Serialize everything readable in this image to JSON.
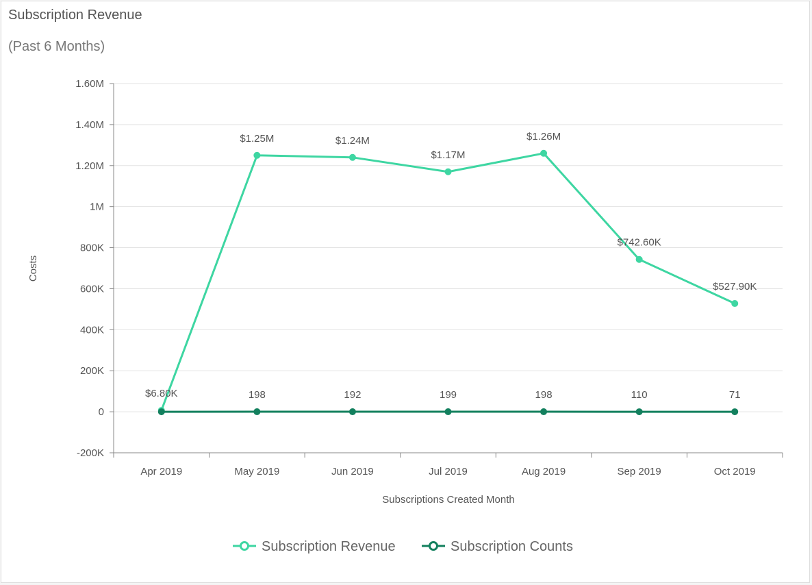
{
  "panel": {
    "title": "Subscription Revenue",
    "subtitle": "(Past 6 Months)"
  },
  "chart_data": {
    "type": "line",
    "title": "Subscription Revenue",
    "subtitle": "(Past 6 Months)",
    "xlabel": "Subscriptions Created Month",
    "ylabel": "Costs",
    "categories": [
      "Apr 2019",
      "May 2019",
      "Jun 2019",
      "Jul 2019",
      "Aug 2019",
      "Sep 2019",
      "Oct 2019"
    ],
    "ylim": [
      -200000,
      1600000
    ],
    "yticks": [
      {
        "value": -200000,
        "label": "-200K"
      },
      {
        "value": 0,
        "label": "0"
      },
      {
        "value": 200000,
        "label": "200K"
      },
      {
        "value": 400000,
        "label": "400K"
      },
      {
        "value": 600000,
        "label": "600K"
      },
      {
        "value": 800000,
        "label": "800K"
      },
      {
        "value": 1000000,
        "label": "1M"
      },
      {
        "value": 1200000,
        "label": "1.20M"
      },
      {
        "value": 1400000,
        "label": "1.40M"
      },
      {
        "value": 1600000,
        "label": "1.60M"
      }
    ],
    "grid": "horizontal",
    "legend_position": "bottom",
    "series": [
      {
        "name": "Subscription Revenue",
        "color": "#3ed6a2",
        "values": [
          6800,
          1250000,
          1240000,
          1170000,
          1260000,
          742600,
          527900
        ],
        "labels": [
          "$6.80K",
          "$1.25M",
          "$1.24M",
          "$1.17M",
          "$1.26M",
          "$742.60K",
          "$527.90K"
        ]
      },
      {
        "name": "Subscription Counts",
        "color": "#13805e",
        "values": [
          0,
          198,
          192,
          199,
          198,
          110,
          71
        ],
        "labels": [
          "",
          "198",
          "192",
          "199",
          "198",
          "110",
          "71"
        ]
      }
    ]
  }
}
